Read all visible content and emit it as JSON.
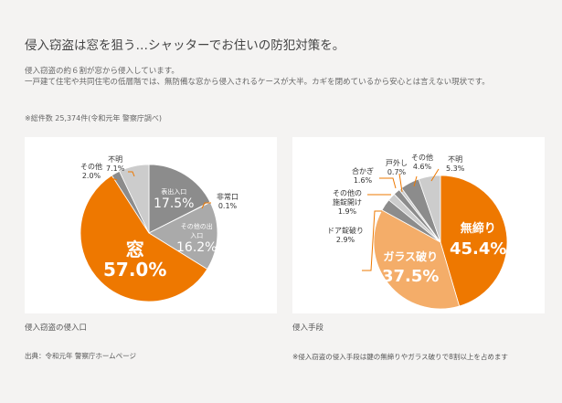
{
  "header": {
    "title": "侵入窃盗は窓を狙う…シャッターでお住いの防犯対策を。",
    "lead1": "侵入窃盗の約６割が窓から侵入しています。",
    "lead2": "一戸建て住宅や共同住宅の低層階では、無防備な窓から侵入されるケースが大半。カギを閉めているから安心とは言えない現状です。",
    "note": "※総件数 25,374件(令和元年 警察庁調べ)"
  },
  "colors": {
    "orange": "#ee7800",
    "light_orange": "#f4ad69",
    "dark_gray": "#8c8c8c",
    "mid_gray": "#aaaaaa",
    "light_gray": "#cccccc",
    "background": "#f4f3f2"
  },
  "chart_data": [
    {
      "type": "pie",
      "caption": "侵入窃盗の侵入口",
      "source": "出典：令和元年 警察庁ホームページ",
      "slices": [
        {
          "label": "表出入口",
          "value": 17.5,
          "display": "17.5%",
          "color": "#8c8c8c"
        },
        {
          "label": "非常口",
          "value": 0.1,
          "display": "0.1%",
          "color": "#8c8c8c"
        },
        {
          "label": "その他の出入口",
          "value": 16.2,
          "display": "16.2%",
          "color": "#aaaaaa"
        },
        {
          "label": "窓",
          "value": 57.0,
          "display": "57.0%",
          "color": "#ee7800"
        },
        {
          "label": "その他",
          "value": 2.0,
          "display": "2.0%",
          "color": "#8c8c8c"
        },
        {
          "label": "不明",
          "value": 7.1,
          "display": "7.1%",
          "color": "#cccccc"
        }
      ]
    },
    {
      "type": "pie",
      "caption": "侵入手段",
      "source": "※侵入窃盗の侵入手段は鍵の無締りやガラス破りで8割以上を占めます",
      "slices": [
        {
          "label": "無締り",
          "value": 45.4,
          "display": "45.4%",
          "color": "#ee7800"
        },
        {
          "label": "ガラス破り",
          "value": 37.5,
          "display": "37.5%",
          "color": "#f4ad69"
        },
        {
          "label": "ドア錠破り",
          "value": 2.9,
          "display": "2.9%",
          "color": "#8c8c8c"
        },
        {
          "label": "その他の施錠開け",
          "value": 1.9,
          "display": "1.9%",
          "color": "#cccccc"
        },
        {
          "label": "合かぎ",
          "value": 1.6,
          "display": "1.6%",
          "color": "#8c8c8c"
        },
        {
          "label": "戸外し",
          "value": 0.7,
          "display": "0.7%",
          "color": "#cccccc"
        },
        {
          "label": "その他",
          "value": 4.6,
          "display": "4.6%",
          "color": "#8c8c8c"
        },
        {
          "label": "不明",
          "value": 5.3,
          "display": "5.3%",
          "color": "#cccccc"
        }
      ]
    }
  ]
}
